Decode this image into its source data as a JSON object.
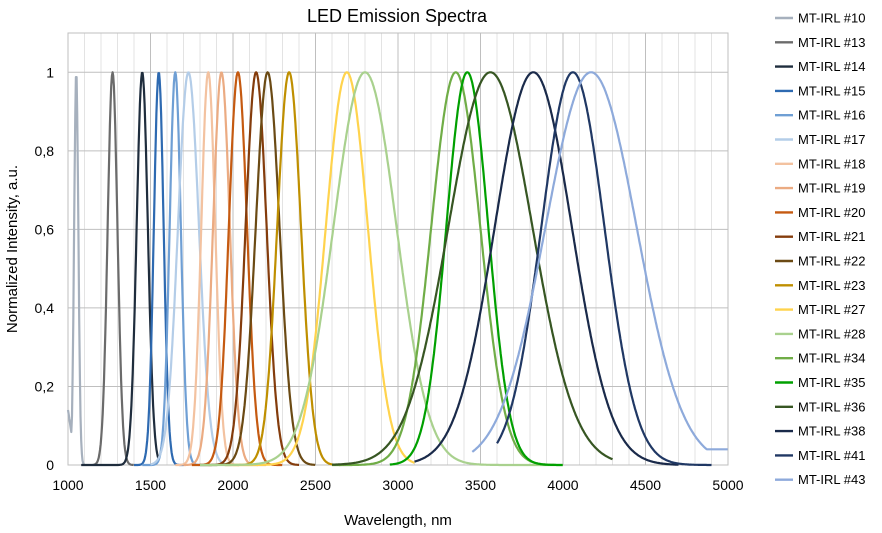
{
  "chart_data": {
    "type": "line",
    "title": "LED Emission Spectra",
    "xlabel": "Wavelength, nm",
    "ylabel": "Normalized Intensity, a.u.",
    "xlim": [
      1000,
      5000
    ],
    "ylim": [
      0,
      1.1
    ],
    "x_ticks": [
      1000,
      1500,
      2000,
      2500,
      3000,
      3500,
      4000,
      4500,
      5000
    ],
    "x_tick_labels": [
      "1000",
      "1500",
      "2000",
      "2500",
      "3000",
      "3500",
      "4000",
      "4500",
      "5000"
    ],
    "x_minor_step": 100,
    "y_ticks": [
      0,
      0.2,
      0.4,
      0.6,
      0.8,
      1.0
    ],
    "y_tick_labels": [
      "0",
      "0,2",
      "0,4",
      "0,6",
      "0,8",
      "1"
    ],
    "grid": true,
    "legend_position": "right",
    "series": [
      {
        "name": "MT-IRL #10",
        "color": "#a6b0bd",
        "peak": 1050,
        "fwhm": 30,
        "x_start": 1000,
        "x_end": 1100,
        "base_left": 0.14
      },
      {
        "name": "MT-IRL #13",
        "color": "#6b6b6b",
        "peak": 1270,
        "fwhm": 70,
        "x_start": 1150,
        "x_end": 1400
      },
      {
        "name": "MT-IRL #14",
        "color": "#1f2d3d",
        "peak": 1450,
        "fwhm": 80,
        "x_start": 1080,
        "x_end": 1550
      },
      {
        "name": "MT-IRL #15",
        "color": "#2e6ab1",
        "peak": 1550,
        "fwhm": 70,
        "x_start": 1400,
        "x_end": 1700
      },
      {
        "name": "MT-IRL #16",
        "color": "#6f9fd4",
        "peak": 1650,
        "fwhm": 80,
        "x_start": 1450,
        "x_end": 1850
      },
      {
        "name": "MT-IRL #17",
        "color": "#b4cde8",
        "peak": 1730,
        "fwhm": 150,
        "x_start": 1500,
        "x_end": 2000
      },
      {
        "name": "MT-IRL #18",
        "color": "#f3c2a0",
        "peak": 1850,
        "fwhm": 100,
        "x_start": 1650,
        "x_end": 2150
      },
      {
        "name": "MT-IRL #19",
        "color": "#ebab82",
        "peak": 1930,
        "fwhm": 120,
        "x_start": 1700,
        "x_end": 2200
      },
      {
        "name": "MT-IRL #20",
        "color": "#c55a11",
        "peak": 2030,
        "fwhm": 130,
        "x_start": 1750,
        "x_end": 2300
      },
      {
        "name": "MT-IRL #21",
        "color": "#843c0c",
        "peak": 2140,
        "fwhm": 150,
        "x_start": 1800,
        "x_end": 2400
      },
      {
        "name": "MT-IRL #22",
        "color": "#6b4a14",
        "peak": 2210,
        "fwhm": 170,
        "x_start": 1850,
        "x_end": 2500
      },
      {
        "name": "MT-IRL #23",
        "color": "#bf8f00",
        "peak": 2340,
        "fwhm": 170,
        "x_start": 1950,
        "x_end": 2650
      },
      {
        "name": "MT-IRL #27",
        "color": "#ffd34d",
        "peak": 2690,
        "fwhm": 300,
        "x_start": 2000,
        "x_end": 3100
      },
      {
        "name": "MT-IRL #28",
        "color": "#a9d18e",
        "peak": 2800,
        "fwhm": 450,
        "x_start": 1800,
        "x_end": 4000
      },
      {
        "name": "MT-IRL #34",
        "color": "#70ad47",
        "peak": 3350,
        "fwhm": 350,
        "x_start": 2600,
        "x_end": 3950
      },
      {
        "name": "MT-IRL #35",
        "color": "#00a000",
        "peak": 3420,
        "fwhm": 300,
        "x_start": 2950,
        "x_end": 4000
      },
      {
        "name": "MT-IRL #36",
        "color": "#375623",
        "peak": 3560,
        "fwhm": 600,
        "x_start": 2600,
        "x_end": 4300
      },
      {
        "name": "MT-IRL #38",
        "color": "#1a2a4a",
        "peak": 3820,
        "fwhm": 550,
        "x_start": 3100,
        "x_end": 4700
      },
      {
        "name": "MT-IRL #41",
        "color": "#203864",
        "peak": 4060,
        "fwhm": 450,
        "x_start": 3600,
        "x_end": 4900
      },
      {
        "name": "MT-IRL #43",
        "color": "#8eaadb",
        "peak": 4170,
        "fwhm": 650,
        "x_start": 3450,
        "x_end": 5000,
        "base_right": 0.04
      }
    ]
  }
}
